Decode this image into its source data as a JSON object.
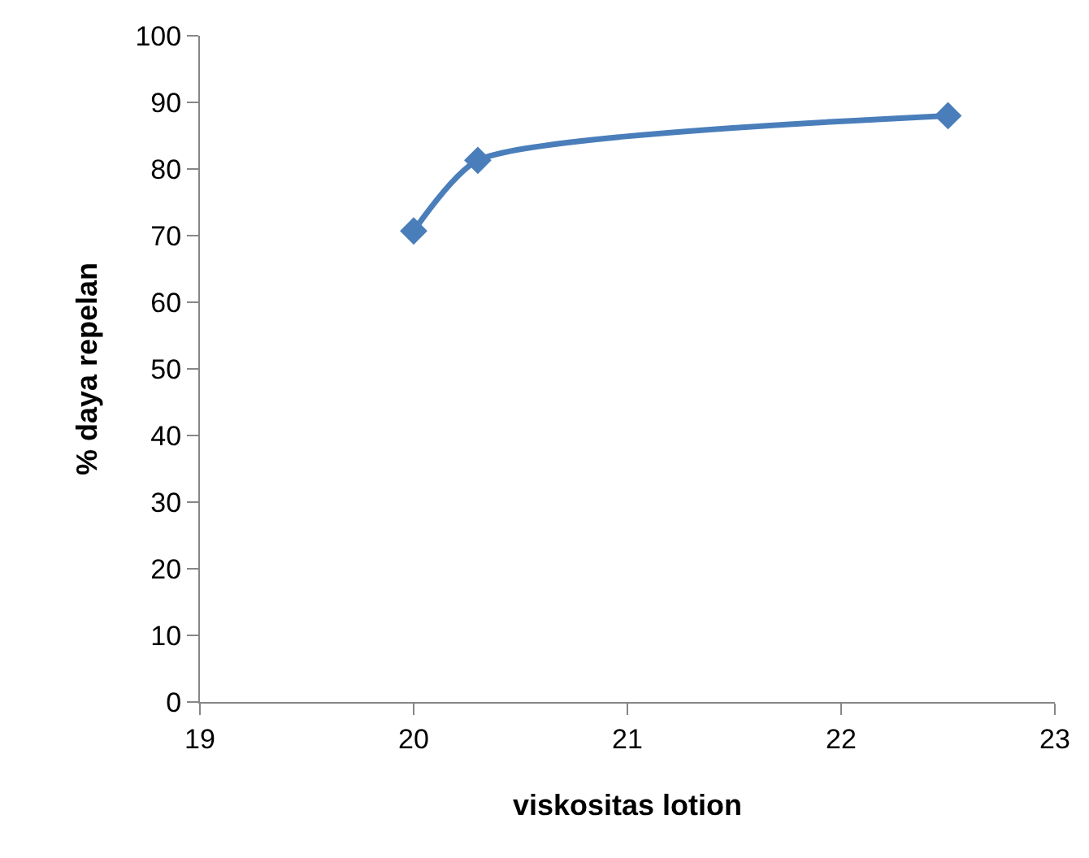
{
  "chart_data": {
    "type": "line",
    "xlabel": "viskositas lotion",
    "ylabel": "% daya repelan",
    "x": [
      20,
      20.3,
      22.5
    ],
    "series": [
      {
        "color": "#4a7ebb",
        "values": [
          70.7,
          81.3,
          88
        ]
      }
    ],
    "xlim": [
      19,
      23
    ],
    "xticks": [
      19,
      20,
      21,
      22,
      23
    ],
    "ylim": [
      0,
      100
    ],
    "yticks": [
      0,
      10,
      20,
      30,
      40,
      50,
      60,
      70,
      80,
      90,
      100
    ],
    "marker": "diamond",
    "line_style": "solid"
  }
}
